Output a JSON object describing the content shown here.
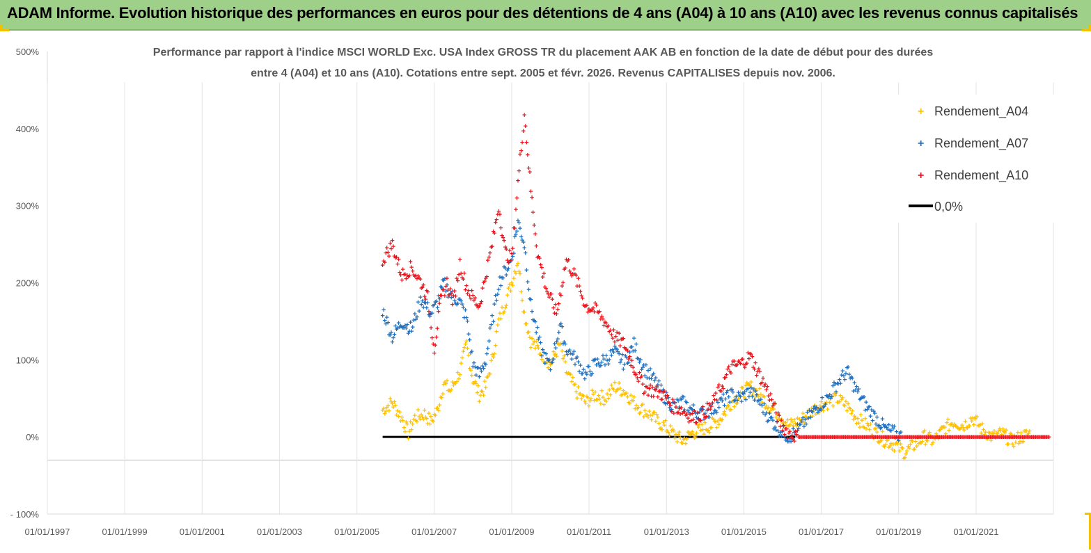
{
  "banner": {
    "title": "ADAM Informe. Evolution historique des performances en euros pour des détentions de 4 ans (A04) à 10 ans (A10) avec les revenus connus capitalisés"
  },
  "colors": {
    "A04": "#ffc000",
    "A07": "#1f6fbf",
    "A10": "#e8141c",
    "zero": "#000000",
    "banner": "#9fd08a"
  },
  "chart_data": {
    "type": "scatter",
    "title_line1": "Performance par rapport à l'indice MSCI WORLD Exc. USA Index GROSS TR  du placement AAK AB en fonction de la date de début pour des durées",
    "title_line2": "entre 4 (A04) et 10 ans (A10). Cotations entre sept. 2005 et févr. 2026. Revenus CAPITALISES depuis nov. 2006.",
    "xlabel": "",
    "ylabel": "",
    "x_range": [
      "1997-01-01",
      "2023-01-01"
    ],
    "ylim": [
      -100,
      500
    ],
    "y_ticks": [
      -100,
      0,
      100,
      200,
      300,
      400,
      500
    ],
    "y_tick_labels": [
      "- 100%",
      "0%",
      "100%",
      "200%",
      "300%",
      "400%",
      "500%"
    ],
    "x_ticks": [
      "1997-01-01",
      "1999-01-01",
      "2001-01-01",
      "2003-01-01",
      "2005-01-01",
      "2007-01-01",
      "2009-01-01",
      "2011-01-01",
      "2013-01-01",
      "2015-01-01",
      "2017-01-01",
      "2019-01-01",
      "2021-01-01"
    ],
    "x_tick_labels": [
      "01/01/1997",
      "01/01/1999",
      "01/01/2001",
      "01/01/2003",
      "01/01/2005",
      "01/01/2007",
      "01/01/2009",
      "01/01/2011",
      "01/01/2013",
      "01/01/2015",
      "01/01/2017",
      "01/01/2019",
      "01/01/2021"
    ],
    "grid": "vertical",
    "legend": "right",
    "series": [
      {
        "name": "Rendement_A04",
        "color": "#ffc000",
        "points": [
          [
            "2005-09-01",
            35
          ],
          [
            "2005-12-01",
            45
          ],
          [
            "2006-03-01",
            25
          ],
          [
            "2006-05-01",
            5
          ],
          [
            "2006-07-01",
            25
          ],
          [
            "2006-10-01",
            30
          ],
          [
            "2006-12-01",
            20
          ],
          [
            "2007-02-01",
            35
          ],
          [
            "2007-04-01",
            70
          ],
          [
            "2007-06-01",
            60
          ],
          [
            "2007-09-01",
            85
          ],
          [
            "2007-11-01",
            120
          ],
          [
            "2008-01-01",
            75
          ],
          [
            "2008-03-01",
            55
          ],
          [
            "2008-05-01",
            65
          ],
          [
            "2008-07-01",
            100
          ],
          [
            "2008-09-01",
            150
          ],
          [
            "2008-11-01",
            175
          ],
          [
            "2009-01-01",
            200
          ],
          [
            "2009-03-01",
            230
          ],
          [
            "2009-05-01",
            160
          ],
          [
            "2009-07-01",
            125
          ],
          [
            "2009-10-01",
            110
          ],
          [
            "2010-01-01",
            95
          ],
          [
            "2010-04-01",
            120
          ],
          [
            "2010-06-01",
            85
          ],
          [
            "2010-09-01",
            60
          ],
          [
            "2010-12-01",
            45
          ],
          [
            "2011-03-01",
            55
          ],
          [
            "2011-06-01",
            50
          ],
          [
            "2011-09-01",
            65
          ],
          [
            "2011-12-01",
            60
          ],
          [
            "2012-03-01",
            45
          ],
          [
            "2012-06-01",
            35
          ],
          [
            "2012-09-01",
            25
          ],
          [
            "2012-12-01",
            15
          ],
          [
            "2013-03-01",
            5
          ],
          [
            "2013-06-01",
            -5
          ],
          [
            "2013-09-01",
            5
          ],
          [
            "2013-12-01",
            10
          ],
          [
            "2014-03-01",
            15
          ],
          [
            "2014-06-01",
            25
          ],
          [
            "2014-09-01",
            45
          ],
          [
            "2014-12-01",
            55
          ],
          [
            "2015-03-01",
            65
          ],
          [
            "2015-06-01",
            55
          ],
          [
            "2015-09-01",
            40
          ],
          [
            "2015-12-01",
            30
          ],
          [
            "2016-03-01",
            15
          ],
          [
            "2016-06-01",
            20
          ],
          [
            "2016-09-01",
            30
          ],
          [
            "2016-12-01",
            40
          ],
          [
            "2017-03-01",
            45
          ],
          [
            "2017-06-01",
            50
          ],
          [
            "2017-09-01",
            40
          ],
          [
            "2017-12-01",
            25
          ],
          [
            "2018-03-01",
            15
          ],
          [
            "2018-06-01",
            5
          ],
          [
            "2018-09-01",
            -5
          ],
          [
            "2018-12-01",
            -10
          ],
          [
            "2019-03-01",
            -20
          ],
          [
            "2019-06-01",
            -10
          ],
          [
            "2019-09-01",
            0
          ],
          [
            "2019-12-01",
            -5
          ],
          [
            "2020-03-01",
            10
          ],
          [
            "2020-06-01",
            20
          ],
          [
            "2020-09-01",
            15
          ],
          [
            "2020-12-01",
            25
          ],
          [
            "2021-03-01",
            10
          ],
          [
            "2021-06-01",
            0
          ],
          [
            "2021-09-01",
            5
          ],
          [
            "2021-12-01",
            -5
          ],
          [
            "2022-03-01",
            0
          ],
          [
            "2022-06-01",
            5
          ]
        ]
      },
      {
        "name": "Rendement_A07",
        "color": "#1f6fbf",
        "points": [
          [
            "2005-09-01",
            165
          ],
          [
            "2005-12-01",
            130
          ],
          [
            "2006-03-01",
            150
          ],
          [
            "2006-06-01",
            140
          ],
          [
            "2006-09-01",
            180
          ],
          [
            "2006-12-01",
            160
          ],
          [
            "2007-02-01",
            175
          ],
          [
            "2007-04-01",
            200
          ],
          [
            "2007-06-01",
            185
          ],
          [
            "2007-09-01",
            175
          ],
          [
            "2007-11-01",
            155
          ],
          [
            "2008-01-01",
            95
          ],
          [
            "2008-03-01",
            80
          ],
          [
            "2008-05-01",
            100
          ],
          [
            "2008-07-01",
            150
          ],
          [
            "2008-09-01",
            200
          ],
          [
            "2008-11-01",
            215
          ],
          [
            "2009-01-01",
            230
          ],
          [
            "2009-03-01",
            280
          ],
          [
            "2009-05-01",
            250
          ],
          [
            "2009-07-01",
            170
          ],
          [
            "2009-10-01",
            115
          ],
          [
            "2010-01-01",
            90
          ],
          [
            "2010-04-01",
            145
          ],
          [
            "2010-06-01",
            115
          ],
          [
            "2010-09-01",
            100
          ],
          [
            "2010-12-01",
            80
          ],
          [
            "2011-03-01",
            95
          ],
          [
            "2011-06-01",
            100
          ],
          [
            "2011-09-01",
            110
          ],
          [
            "2011-12-01",
            95
          ],
          [
            "2012-03-01",
            120
          ],
          [
            "2012-06-01",
            90
          ],
          [
            "2012-09-01",
            75
          ],
          [
            "2012-12-01",
            55
          ],
          [
            "2013-03-01",
            40
          ],
          [
            "2013-06-01",
            45
          ],
          [
            "2013-09-01",
            35
          ],
          [
            "2013-12-01",
            30
          ],
          [
            "2014-03-01",
            35
          ],
          [
            "2014-06-01",
            45
          ],
          [
            "2014-09-01",
            55
          ],
          [
            "2014-12-01",
            50
          ],
          [
            "2015-03-01",
            60
          ],
          [
            "2015-06-01",
            45
          ],
          [
            "2015-09-01",
            25
          ],
          [
            "2015-12-01",
            10
          ],
          [
            "2016-03-01",
            0
          ],
          [
            "2016-06-01",
            10
          ],
          [
            "2016-09-01",
            25
          ],
          [
            "2016-12-01",
            40
          ],
          [
            "2017-03-01",
            50
          ],
          [
            "2017-06-01",
            70
          ],
          [
            "2017-09-01",
            85
          ],
          [
            "2017-12-01",
            60
          ],
          [
            "2018-03-01",
            40
          ],
          [
            "2018-06-01",
            25
          ],
          [
            "2018-09-01",
            10
          ],
          [
            "2018-12-01",
            5
          ],
          [
            "2019-02-01",
            0
          ]
        ]
      },
      {
        "name": "Rendement_A10",
        "color": "#e8141c",
        "points": [
          [
            "2005-09-01",
            230
          ],
          [
            "2005-12-01",
            250
          ],
          [
            "2006-03-01",
            210
          ],
          [
            "2006-06-01",
            220
          ],
          [
            "2006-09-01",
            200
          ],
          [
            "2006-11-01",
            180
          ],
          [
            "2007-01-01",
            115
          ],
          [
            "2007-03-01",
            175
          ],
          [
            "2007-05-01",
            200
          ],
          [
            "2007-07-01",
            175
          ],
          [
            "2007-09-01",
            225
          ],
          [
            "2007-11-01",
            195
          ],
          [
            "2008-01-01",
            180
          ],
          [
            "2008-03-01",
            170
          ],
          [
            "2008-05-01",
            210
          ],
          [
            "2008-07-01",
            250
          ],
          [
            "2008-09-01",
            300
          ],
          [
            "2008-11-01",
            240
          ],
          [
            "2009-01-01",
            230
          ],
          [
            "2009-03-01",
            330
          ],
          [
            "2009-05-01",
            420
          ],
          [
            "2009-07-01",
            320
          ],
          [
            "2009-09-01",
            240
          ],
          [
            "2009-12-01",
            190
          ],
          [
            "2010-03-01",
            160
          ],
          [
            "2010-06-01",
            230
          ],
          [
            "2010-09-01",
            205
          ],
          [
            "2010-12-01",
            170
          ],
          [
            "2011-03-01",
            165
          ],
          [
            "2011-06-01",
            150
          ],
          [
            "2011-09-01",
            130
          ],
          [
            "2011-12-01",
            120
          ],
          [
            "2012-03-01",
            90
          ],
          [
            "2012-06-01",
            65
          ],
          [
            "2012-09-01",
            60
          ],
          [
            "2012-12-01",
            55
          ],
          [
            "2013-03-01",
            40
          ],
          [
            "2013-06-01",
            35
          ],
          [
            "2013-09-01",
            25
          ],
          [
            "2013-12-01",
            30
          ],
          [
            "2014-03-01",
            40
          ],
          [
            "2014-06-01",
            65
          ],
          [
            "2014-09-01",
            90
          ],
          [
            "2014-12-01",
            95
          ],
          [
            "2015-03-01",
            105
          ],
          [
            "2015-06-01",
            80
          ],
          [
            "2015-09-01",
            55
          ],
          [
            "2015-12-01",
            20
          ],
          [
            "2016-03-01",
            5
          ],
          [
            "2016-06-01",
            0
          ],
          [
            "2017-01-01",
            0
          ],
          [
            "2018-01-01",
            0
          ],
          [
            "2019-01-01",
            0
          ],
          [
            "2020-01-01",
            0
          ],
          [
            "2021-01-01",
            0
          ],
          [
            "2022-01-01",
            0
          ],
          [
            "2022-12-01",
            0
          ]
        ]
      },
      {
        "name": "0,0%",
        "color": "#000000",
        "line": [
          [
            "2005-09-01",
            0
          ],
          [
            "2016-05-01",
            0
          ]
        ]
      }
    ]
  }
}
